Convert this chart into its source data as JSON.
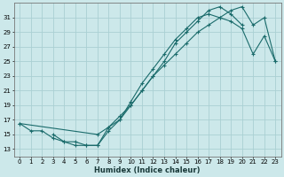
{
  "xlabel": "Humidex (Indice chaleur)",
  "bg_color": "#cce8ea",
  "grid_color": "#aad0d3",
  "line_color": "#1a6b6b",
  "xlim": [
    -0.5,
    23.5
  ],
  "ylim": [
    12.0,
    33.0
  ],
  "yticks": [
    13,
    15,
    17,
    19,
    21,
    23,
    25,
    27,
    29,
    31
  ],
  "xticks": [
    0,
    1,
    2,
    3,
    4,
    5,
    6,
    7,
    8,
    9,
    10,
    11,
    12,
    13,
    14,
    15,
    16,
    17,
    18,
    19,
    20,
    21,
    22,
    23
  ],
  "line1_x": [
    0,
    1,
    2,
    3,
    4,
    5,
    6,
    7,
    8,
    9,
    10,
    11,
    12,
    13,
    14,
    15,
    16,
    17,
    18,
    19,
    20
  ],
  "line1_y": [
    16.5,
    15.5,
    15.5,
    14.5,
    14.0,
    13.5,
    13.5,
    13.5,
    16.0,
    17.0,
    19.0,
    21.0,
    23.0,
    25.0,
    27.5,
    29.0,
    30.5,
    32.0,
    32.5,
    31.5,
    30.0
  ],
  "line2_x": [
    3,
    4,
    5,
    6,
    7,
    8,
    9,
    10,
    11,
    12,
    13,
    14,
    15,
    16,
    17,
    18,
    19,
    20,
    21,
    22,
    23
  ],
  "line2_y": [
    15.0,
    14.0,
    14.0,
    13.5,
    13.5,
    15.5,
    17.0,
    19.5,
    22.0,
    24.0,
    26.0,
    28.0,
    29.5,
    31.0,
    31.5,
    31.0,
    30.5,
    29.5,
    26.0,
    28.5,
    25.0
  ],
  "line3_x": [
    0,
    7,
    8,
    9,
    10,
    11,
    12,
    13,
    14,
    15,
    16,
    17,
    18,
    19,
    20,
    21,
    22,
    23
  ],
  "line3_y": [
    16.5,
    15.0,
    16.0,
    17.5,
    19.0,
    21.0,
    23.0,
    24.5,
    26.0,
    27.5,
    29.0,
    30.0,
    31.0,
    32.0,
    32.5,
    30.0,
    31.0,
    25.0
  ]
}
